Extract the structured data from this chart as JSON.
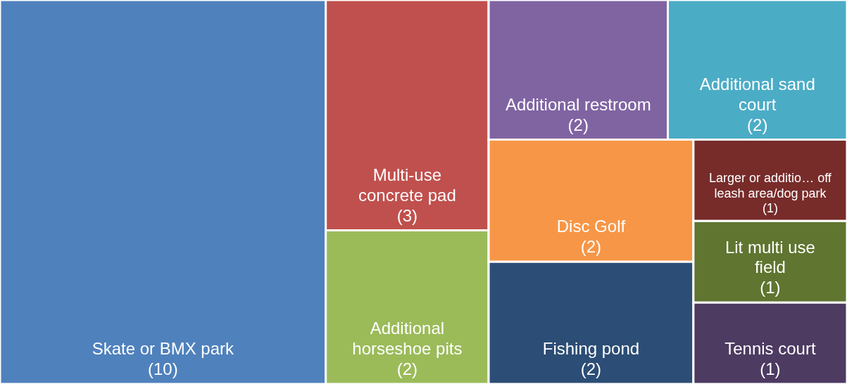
{
  "chart_data": {
    "type": "other",
    "categories": [
      "Skate or BMX park",
      "Multi-use concrete pad",
      "Additional horseshoe pits",
      "Additional restroom",
      "Additional sand court",
      "Disc Golf",
      "Fishing pond",
      "Larger or additio… off leash area/dog park",
      "Lit multi use field",
      "Tennis court"
    ],
    "values": [
      10,
      3,
      2,
      2,
      2,
      2,
      2,
      1,
      1,
      1
    ],
    "value_labels": [
      "(10)",
      "(3)",
      "(2)",
      "(2)",
      "(2)",
      "(2)",
      "(2)",
      "(1)",
      "(1)",
      "(1)"
    ],
    "colors": [
      "#4f81bd",
      "#c0504d",
      "#9bbb59",
      "#8064a2",
      "#4bacc6",
      "#f79646",
      "#2c4d75",
      "#772c2a",
      "#5f7530",
      "#4d3b62"
    ]
  }
}
